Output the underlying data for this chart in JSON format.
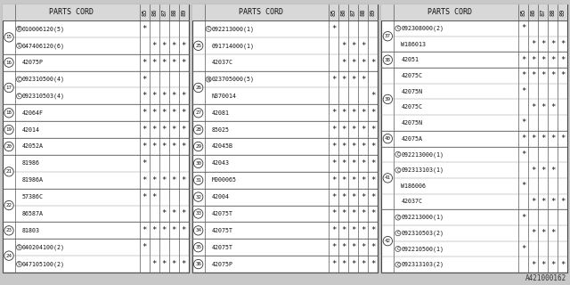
{
  "footer": "A421000162",
  "bg_color": "#c8c8c8",
  "table_bg": "#ffffff",
  "border_color": "#444444",
  "panels": [
    {
      "rows": [
        {
          "ref": "15",
          "parts": [
            {
              "prefix": "B",
              "pc": true,
              "code": "010006120(5)",
              "marks": [
                1,
                0,
                0,
                0,
                0
              ]
            },
            {
              "prefix": "S",
              "pc": true,
              "code": "047406120(6)",
              "marks": [
                0,
                1,
                1,
                1,
                1
              ]
            }
          ]
        },
        {
          "ref": "16",
          "parts": [
            {
              "prefix": "",
              "pc": false,
              "code": "42075P",
              "marks": [
                1,
                1,
                1,
                1,
                1
              ]
            }
          ]
        },
        {
          "ref": "17",
          "parts": [
            {
              "prefix": "C",
              "pc": true,
              "code": "092310500(4)",
              "marks": [
                1,
                0,
                0,
                0,
                0
              ]
            },
            {
              "prefix": "C",
              "pc": true,
              "code": "092310503(4)",
              "marks": [
                1,
                1,
                1,
                1,
                1
              ]
            }
          ]
        },
        {
          "ref": "18",
          "parts": [
            {
              "prefix": "",
              "pc": false,
              "code": "42064F",
              "marks": [
                1,
                1,
                1,
                1,
                1
              ]
            }
          ]
        },
        {
          "ref": "19",
          "parts": [
            {
              "prefix": "",
              "pc": false,
              "code": "42014",
              "marks": [
                1,
                1,
                1,
                1,
                1
              ]
            }
          ]
        },
        {
          "ref": "20",
          "parts": [
            {
              "prefix": "",
              "pc": false,
              "code": "42052A",
              "marks": [
                1,
                1,
                1,
                1,
                1
              ]
            }
          ]
        },
        {
          "ref": "21",
          "parts": [
            {
              "prefix": "",
              "pc": false,
              "code": "81986",
              "marks": [
                1,
                0,
                0,
                0,
                0
              ]
            },
            {
              "prefix": "",
              "pc": false,
              "code": "81986A",
              "marks": [
                1,
                1,
                1,
                1,
                1
              ]
            }
          ]
        },
        {
          "ref": "22",
          "parts": [
            {
              "prefix": "",
              "pc": false,
              "code": "57386C",
              "marks": [
                1,
                1,
                0,
                0,
                0
              ]
            },
            {
              "prefix": "",
              "pc": false,
              "code": "86587A",
              "marks": [
                0,
                0,
                1,
                1,
                1
              ]
            }
          ]
        },
        {
          "ref": "23",
          "parts": [
            {
              "prefix": "",
              "pc": false,
              "code": "81803",
              "marks": [
                1,
                1,
                1,
                1,
                1
              ]
            }
          ]
        },
        {
          "ref": "24",
          "parts": [
            {
              "prefix": "S",
              "pc": true,
              "code": "040204100(2)",
              "marks": [
                1,
                0,
                0,
                0,
                0
              ]
            },
            {
              "prefix": "S",
              "pc": true,
              "code": "047105100(2)",
              "marks": [
                0,
                1,
                1,
                1,
                1
              ]
            }
          ]
        }
      ]
    },
    {
      "rows": [
        {
          "ref": "25",
          "parts": [
            {
              "prefix": "C",
              "pc": true,
              "code": "092213000(1)",
              "marks": [
                1,
                0,
                0,
                0,
                0
              ]
            },
            {
              "prefix": "",
              "pc": false,
              "code": "091714000(1)",
              "marks": [
                0,
                1,
                1,
                1,
                0
              ]
            },
            {
              "prefix": "",
              "pc": false,
              "code": "42037C",
              "marks": [
                0,
                1,
                1,
                1,
                1
              ]
            }
          ]
        },
        {
          "ref": "26",
          "parts": [
            {
              "prefix": "N",
              "pc": true,
              "code": "023705000(5)",
              "marks": [
                1,
                1,
                1,
                1,
                0
              ]
            },
            {
              "prefix": "",
              "pc": false,
              "code": "N370014",
              "marks": [
                0,
                0,
                0,
                0,
                1
              ]
            }
          ]
        },
        {
          "ref": "27",
          "parts": [
            {
              "prefix": "",
              "pc": false,
              "code": "42081",
              "marks": [
                1,
                1,
                1,
                1,
                1
              ]
            }
          ]
        },
        {
          "ref": "28",
          "parts": [
            {
              "prefix": "",
              "pc": false,
              "code": "85025",
              "marks": [
                1,
                1,
                1,
                1,
                1
              ]
            }
          ]
        },
        {
          "ref": "29",
          "parts": [
            {
              "prefix": "",
              "pc": false,
              "code": "42045B",
              "marks": [
                1,
                1,
                1,
                1,
                1
              ]
            }
          ]
        },
        {
          "ref": "30",
          "parts": [
            {
              "prefix": "",
              "pc": false,
              "code": "42043",
              "marks": [
                1,
                1,
                1,
                1,
                1
              ]
            }
          ]
        },
        {
          "ref": "31",
          "parts": [
            {
              "prefix": "",
              "pc": false,
              "code": "M000065",
              "marks": [
                1,
                1,
                1,
                1,
                1
              ]
            }
          ]
        },
        {
          "ref": "32",
          "parts": [
            {
              "prefix": "",
              "pc": false,
              "code": "42004",
              "marks": [
                1,
                1,
                1,
                1,
                1
              ]
            }
          ]
        },
        {
          "ref": "33",
          "parts": [
            {
              "prefix": "",
              "pc": false,
              "code": "42075T",
              "marks": [
                1,
                1,
                1,
                1,
                1
              ]
            }
          ]
        },
        {
          "ref": "34",
          "parts": [
            {
              "prefix": "",
              "pc": false,
              "code": "42075T",
              "marks": [
                1,
                1,
                1,
                1,
                1
              ]
            }
          ]
        },
        {
          "ref": "35",
          "parts": [
            {
              "prefix": "",
              "pc": false,
              "code": "42075T",
              "marks": [
                1,
                1,
                1,
                1,
                1
              ]
            }
          ]
        },
        {
          "ref": "36",
          "parts": [
            {
              "prefix": "",
              "pc": false,
              "code": "42075P",
              "marks": [
                1,
                1,
                1,
                1,
                1
              ]
            }
          ]
        }
      ]
    },
    {
      "rows": [
        {
          "ref": "37",
          "parts": [
            {
              "prefix": "C",
              "pc": true,
              "code": "092308000(2)",
              "marks": [
                1,
                0,
                0,
                0,
                0
              ]
            },
            {
              "prefix": "",
              "pc": false,
              "code": "W186013",
              "marks": [
                0,
                1,
                1,
                1,
                1
              ]
            }
          ]
        },
        {
          "ref": "38",
          "parts": [
            {
              "prefix": "",
              "pc": false,
              "code": "42051",
              "marks": [
                1,
                1,
                1,
                1,
                1
              ]
            }
          ]
        },
        {
          "ref": "39",
          "parts": [
            {
              "prefix": "",
              "pc": false,
              "code": "42075C",
              "marks": [
                1,
                1,
                1,
                1,
                1
              ]
            },
            {
              "prefix": "",
              "pc": false,
              "code": "42075N",
              "marks": [
                1,
                0,
                0,
                0,
                0
              ]
            },
            {
              "prefix": "",
              "pc": false,
              "code": "42075C",
              "marks": [
                0,
                1,
                1,
                1,
                0
              ]
            },
            {
              "prefix": "",
              "pc": false,
              "code": "42075N",
              "marks": [
                1,
                0,
                0,
                0,
                0
              ]
            }
          ]
        },
        {
          "ref": "40",
          "parts": [
            {
              "prefix": "",
              "pc": false,
              "code": "42075A",
              "marks": [
                1,
                1,
                1,
                1,
                1
              ]
            }
          ]
        },
        {
          "ref": "41",
          "parts": [
            {
              "prefix": "C",
              "pc": true,
              "code": "092213000(1)",
              "marks": [
                1,
                0,
                0,
                0,
                0
              ]
            },
            {
              "prefix": "C",
              "pc": true,
              "code": "092313103(1)",
              "marks": [
                0,
                1,
                1,
                1,
                0
              ]
            },
            {
              "prefix": "",
              "pc": false,
              "code": "W186006",
              "marks": [
                1,
                0,
                0,
                0,
                0
              ]
            },
            {
              "prefix": "",
              "pc": false,
              "code": "42037C",
              "marks": [
                0,
                1,
                1,
                1,
                1
              ]
            }
          ]
        },
        {
          "ref": "42",
          "parts": [
            {
              "prefix": "C",
              "pc": true,
              "code": "092213000(1)",
              "marks": [
                1,
                0,
                0,
                0,
                0
              ]
            },
            {
              "prefix": "C",
              "pc": true,
              "code": "092310503(2)",
              "marks": [
                0,
                1,
                1,
                1,
                0
              ]
            },
            {
              "prefix": "C",
              "pc": true,
              "code": "092210500(1)",
              "marks": [
                1,
                0,
                0,
                0,
                0
              ]
            },
            {
              "prefix": "C",
              "pc": true,
              "code": "092313103(2)",
              "marks": [
                0,
                1,
                1,
                1,
                1
              ]
            }
          ]
        }
      ]
    }
  ],
  "col_headers": [
    "85",
    "86",
    "87",
    "88",
    "89"
  ]
}
